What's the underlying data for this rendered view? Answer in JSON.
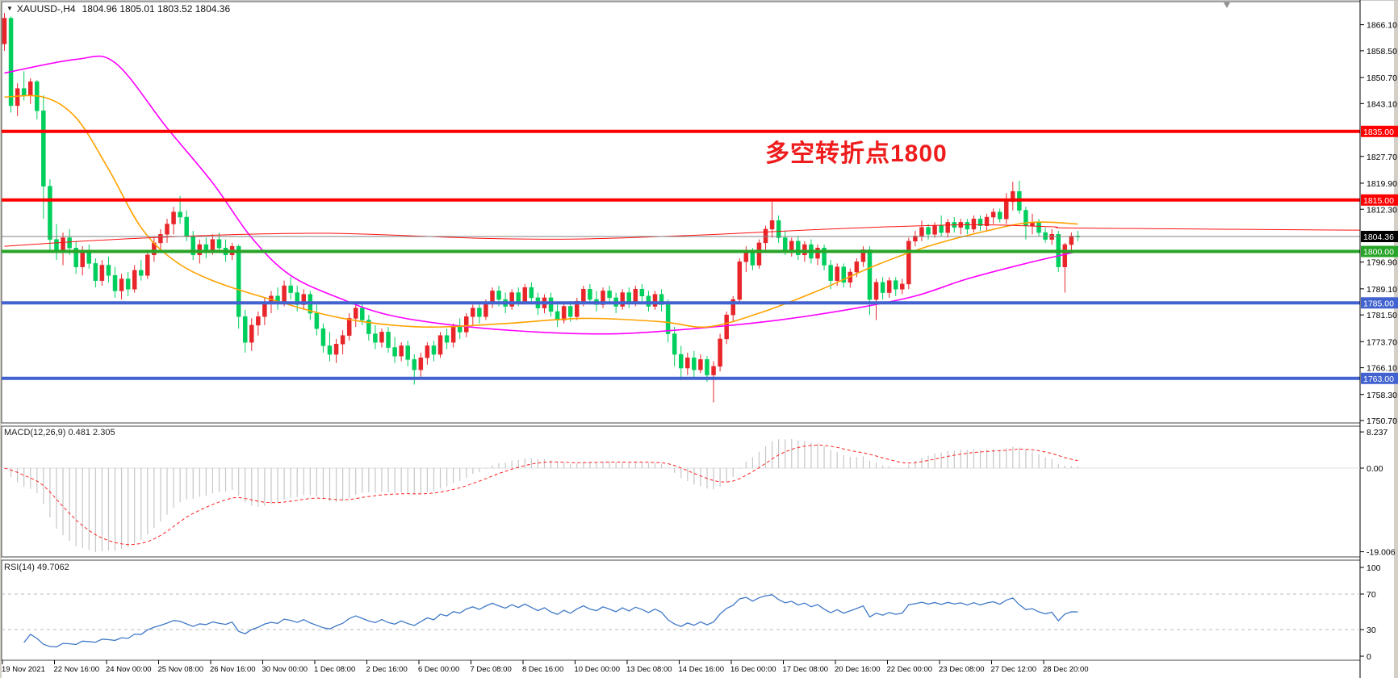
{
  "title": {
    "symbol": "XAUUSD-,H4",
    "ohlc": "1804.96 1805.01 1803.52 1804.36"
  },
  "annotation": {
    "text": "多空转折点1800",
    "color": "#ee1c1c"
  },
  "indicators": {
    "macd": {
      "label": "MACD(12,26,9) 0.481 2.305",
      "fast": 12,
      "slow": 26,
      "signal": 9,
      "histogram_color": "#c6c6c6",
      "signal_color": "#ff2222",
      "ticks": [
        {
          "label": "8.237",
          "value": 8.237
        },
        {
          "label": "0.00",
          "value": 0
        },
        {
          "label": "-19.006",
          "value": -19.006
        }
      ]
    },
    "rsi": {
      "label": "RSI(14) 49.7062",
      "period": 14,
      "line_color": "#4079c7",
      "dashed_levels": [
        70,
        30
      ],
      "ticks": [
        {
          "label": "100",
          "value": 100
        },
        {
          "label": "70",
          "value": 70
        },
        {
          "label": "30",
          "value": 30
        },
        {
          "label": "0",
          "value": 0
        }
      ]
    }
  },
  "price_axis": {
    "ticks": [
      {
        "label": "1866.10",
        "value": 1866.1
      },
      {
        "label": "1858.50",
        "value": 1858.5
      },
      {
        "label": "1850.70",
        "value": 1850.7
      },
      {
        "label": "1843.10",
        "value": 1843.1
      },
      {
        "label": "1827.70",
        "value": 1827.7
      },
      {
        "label": "1819.90",
        "value": 1819.9
      },
      {
        "label": "1812.30",
        "value": 1812.3
      },
      {
        "label": "1796.90",
        "value": 1796.9
      },
      {
        "label": "1789.10",
        "value": 1789.1
      },
      {
        "label": "1781.50",
        "value": 1781.5
      },
      {
        "label": "1773.70",
        "value": 1773.7
      },
      {
        "label": "1766.10",
        "value": 1766.1
      },
      {
        "label": "1758.30",
        "value": 1758.3
      },
      {
        "label": "1750.70",
        "value": 1750.7
      }
    ]
  },
  "time_axis": {
    "labels": [
      "19 Nov 2021",
      "22 Nov 16:00",
      "24 Nov 00:00",
      "25 Nov 08:00",
      "26 Nov 16:00",
      "30 Nov 00:00",
      "1 Dec 08:00",
      "2 Dec 16:00",
      "6 Dec 00:00",
      "7 Dec 08:00",
      "8 Dec 16:00",
      "10 Dec 00:00",
      "13 Dec 08:00",
      "14 Dec 16:00",
      "16 Dec 00:00",
      "17 Dec 08:00",
      "20 Dec 16:00",
      "22 Dec 00:00",
      "23 Dec 08:00",
      "27 Dec 12:00",
      "28 Dec 20:00"
    ]
  },
  "chart_data": {
    "type": "candlestick",
    "symbol": "XAUUSD-",
    "timeframe": "H4",
    "up_color": "#e8262a",
    "down_color": "#00cf5d",
    "last_bar": {
      "open": 1804.96,
      "high": 1805.01,
      "low": 1803.52,
      "close": 1804.36
    },
    "current_price": {
      "price": 1804.36,
      "label": "1804.36",
      "line_color": "#808080",
      "box_color": "#000000"
    },
    "horizontal_levels": [
      {
        "price": 1835,
        "label": "1835.00",
        "color": "#fe0000"
      },
      {
        "price": 1815,
        "label": "1815.00",
        "color": "#fe0000"
      },
      {
        "price": 1800,
        "label": "1800.00",
        "color": "#28a428"
      },
      {
        "price": 1785,
        "label": "1785.00",
        "color": "#4263cf"
      },
      {
        "price": 1763,
        "label": "1763.00",
        "color": "#4263cf"
      }
    ],
    "candles": [
      [
        1860.5,
        1869.5,
        1858.5,
        1868
      ],
      [
        1868,
        1868.5,
        1840.5,
        1842.5
      ],
      [
        1842.5,
        1849,
        1839.5,
        1847.5
      ],
      [
        1847.5,
        1852.5,
        1844,
        1845.5
      ],
      [
        1845.5,
        1850.5,
        1843,
        1849.5
      ],
      [
        1849.5,
        1850,
        1838.5,
        1841
      ],
      [
        1841,
        1845.5,
        1809.5,
        1819
      ],
      [
        1819,
        1821,
        1800,
        1803.5
      ],
      [
        1803.5,
        1808,
        1797.5,
        1800
      ],
      [
        1800,
        1805.5,
        1796,
        1804
      ],
      [
        1804,
        1806.5,
        1799,
        1801
      ],
      [
        1801,
        1803,
        1793.5,
        1795.5
      ],
      [
        1795.5,
        1801.5,
        1793,
        1800
      ],
      [
        1800,
        1802,
        1795,
        1796.5
      ],
      [
        1796.5,
        1798,
        1789.5,
        1791.5
      ],
      [
        1791.5,
        1797.5,
        1790,
        1796
      ],
      [
        1796,
        1798.5,
        1791,
        1793
      ],
      [
        1793,
        1795.5,
        1786.5,
        1788.5
      ],
      [
        1788.5,
        1793.5,
        1786,
        1792
      ],
      [
        1792,
        1794,
        1787,
        1789
      ],
      [
        1789,
        1796,
        1788,
        1794.5
      ],
      [
        1794.5,
        1797.5,
        1791.5,
        1793
      ],
      [
        1793,
        1800.5,
        1792,
        1799
      ],
      [
        1799,
        1804,
        1797,
        1802.5
      ],
      [
        1802.5,
        1806.5,
        1800,
        1805
      ],
      [
        1805,
        1809.5,
        1802.5,
        1808
      ],
      [
        1808,
        1813,
        1805,
        1811.5
      ],
      [
        1811.5,
        1816.2,
        1808,
        1810
      ],
      [
        1810,
        1812,
        1803,
        1804.5
      ],
      [
        1804.5,
        1806,
        1797.5,
        1799
      ],
      [
        1799,
        1803.5,
        1796.5,
        1802
      ],
      [
        1802,
        1804,
        1798,
        1800.5
      ],
      [
        1800.5,
        1805,
        1799,
        1803.5
      ],
      [
        1803.5,
        1805.5,
        1799.5,
        1801
      ],
      [
        1801,
        1803.5,
        1797,
        1799
      ],
      [
        1799,
        1802.5,
        1797.5,
        1801.5
      ],
      [
        1801.5,
        1802,
        1777.5,
        1781
      ],
      [
        1781,
        1783,
        1770.5,
        1773.5
      ],
      [
        1773.5,
        1780.5,
        1771,
        1778.5
      ],
      [
        1778.5,
        1782.5,
        1775.5,
        1781
      ],
      [
        1781,
        1786.5,
        1778.5,
        1785
      ],
      [
        1785,
        1788.5,
        1782,
        1787
      ],
      [
        1787,
        1789.5,
        1783,
        1785
      ],
      [
        1785,
        1791.5,
        1784,
        1790
      ],
      [
        1790,
        1792.5,
        1786,
        1788
      ],
      [
        1788,
        1790,
        1782.5,
        1784.5
      ],
      [
        1784.5,
        1789,
        1783,
        1787.5
      ],
      [
        1787.5,
        1788.5,
        1780,
        1782
      ],
      [
        1782,
        1784.5,
        1775.5,
        1777.5
      ],
      [
        1777.5,
        1779,
        1770.5,
        1772.5
      ],
      [
        1772.5,
        1776.5,
        1768,
        1770
      ],
      [
        1770,
        1774.5,
        1767.5,
        1773
      ],
      [
        1773,
        1777,
        1770,
        1775.5
      ],
      [
        1775.5,
        1782,
        1774,
        1780.5
      ],
      [
        1780.5,
        1784.5,
        1778,
        1783.5
      ],
      [
        1783.5,
        1785,
        1778.5,
        1780
      ],
      [
        1780,
        1781.5,
        1774,
        1776
      ],
      [
        1776,
        1778.5,
        1771.5,
        1773.5
      ],
      [
        1773.5,
        1777.5,
        1772,
        1776.5
      ],
      [
        1776.5,
        1778,
        1770.5,
        1772
      ],
      [
        1772,
        1775,
        1767.5,
        1769.5
      ],
      [
        1769.5,
        1773.5,
        1768,
        1772.5
      ],
      [
        1772.5,
        1774,
        1766.5,
        1768.5
      ],
      [
        1768.5,
        1770,
        1761.2,
        1765.5
      ],
      [
        1765.5,
        1770.5,
        1763.5,
        1769
      ],
      [
        1769,
        1773.5,
        1767,
        1772.5
      ],
      [
        1772.5,
        1774,
        1768,
        1770
      ],
      [
        1770,
        1776.5,
        1769,
        1775.5
      ],
      [
        1775.5,
        1777.5,
        1771.5,
        1773.5
      ],
      [
        1773.5,
        1779,
        1772,
        1778
      ],
      [
        1778,
        1780.5,
        1774.5,
        1776.5
      ],
      [
        1776.5,
        1782,
        1775,
        1781
      ],
      [
        1781,
        1784.5,
        1778.5,
        1783.5
      ],
      [
        1783.5,
        1785,
        1779,
        1781
      ],
      [
        1781,
        1786,
        1780,
        1785
      ],
      [
        1785,
        1789.5,
        1783.5,
        1788.5
      ],
      [
        1788.5,
        1790,
        1784,
        1786
      ],
      [
        1786,
        1788,
        1782,
        1784
      ],
      [
        1784,
        1789,
        1783,
        1788
      ],
      [
        1788,
        1789.5,
        1784,
        1785.5
      ],
      [
        1785.5,
        1790.5,
        1784.5,
        1789.5
      ],
      [
        1789.5,
        1791,
        1785,
        1786.5
      ],
      [
        1786.5,
        1788,
        1781.5,
        1783.5
      ],
      [
        1783.5,
        1787.5,
        1782,
        1786.5
      ],
      [
        1786.5,
        1788,
        1781,
        1782.5
      ],
      [
        1782.5,
        1784.5,
        1778,
        1780
      ],
      [
        1780,
        1785,
        1779,
        1784
      ],
      [
        1784,
        1785.5,
        1779.5,
        1781
      ],
      [
        1781,
        1786.5,
        1780,
        1785.5
      ],
      [
        1785.5,
        1790,
        1784,
        1789
      ],
      [
        1789,
        1790.5,
        1784.5,
        1786
      ],
      [
        1786,
        1788.5,
        1782.5,
        1784.5
      ],
      [
        1784.5,
        1789.5,
        1783.5,
        1788.5
      ],
      [
        1788.5,
        1790,
        1785,
        1786.5
      ],
      [
        1786.5,
        1788,
        1782,
        1784
      ],
      [
        1784,
        1789,
        1783,
        1788
      ],
      [
        1788,
        1789.5,
        1783.5,
        1785
      ],
      [
        1785,
        1790,
        1784,
        1789
      ],
      [
        1789,
        1790.5,
        1785.5,
        1787
      ],
      [
        1787,
        1788.5,
        1782.5,
        1784
      ],
      [
        1784,
        1788.5,
        1783,
        1787.5
      ],
      [
        1787.5,
        1789,
        1782.5,
        1784.5
      ],
      [
        1784.5,
        1786,
        1773.5,
        1776
      ],
      [
        1776,
        1778,
        1766.5,
        1770
      ],
      [
        1770,
        1772.5,
        1762.5,
        1766
      ],
      [
        1766,
        1770.5,
        1764,
        1769
      ],
      [
        1769,
        1771,
        1763.5,
        1765.5
      ],
      [
        1765.5,
        1770,
        1764.5,
        1768.5
      ],
      [
        1768.5,
        1769.5,
        1762,
        1764
      ],
      [
        1764,
        1768,
        1756,
        1766.5
      ],
      [
        1766.5,
        1776,
        1765,
        1774.5
      ],
      [
        1774.5,
        1782.5,
        1773,
        1781.5
      ],
      [
        1781.5,
        1787,
        1779.5,
        1786
      ],
      [
        1786,
        1798,
        1785,
        1797
      ],
      [
        1797,
        1801.5,
        1794,
        1800
      ],
      [
        1800,
        1801,
        1794.5,
        1796
      ],
      [
        1796,
        1803.5,
        1795,
        1802.5
      ],
      [
        1802.5,
        1807.5,
        1800.5,
        1806.5
      ],
      [
        1806.5,
        1814.5,
        1804,
        1809
      ],
      [
        1809,
        1810.5,
        1802.5,
        1804
      ],
      [
        1804,
        1806,
        1799,
        1800.5
      ],
      [
        1800.5,
        1804,
        1798.5,
        1803
      ],
      [
        1803,
        1804.5,
        1797.5,
        1799
      ],
      [
        1799,
        1803,
        1797,
        1802
      ],
      [
        1802,
        1803.5,
        1796.5,
        1798
      ],
      [
        1798,
        1802,
        1796,
        1801
      ],
      [
        1801,
        1802,
        1794.5,
        1796
      ],
      [
        1796,
        1797.5,
        1789,
        1791.5
      ],
      [
        1791.5,
        1796.5,
        1790,
        1795.5
      ],
      [
        1795.5,
        1796.5,
        1789.5,
        1791
      ],
      [
        1791,
        1795,
        1789.5,
        1794
      ],
      [
        1794,
        1798,
        1792.5,
        1797
      ],
      [
        1797,
        1801.5,
        1795.5,
        1800.5
      ],
      [
        1800.5,
        1801.5,
        1781.5,
        1786
      ],
      [
        1786,
        1792,
        1780,
        1791
      ],
      [
        1791,
        1792.5,
        1786,
        1788
      ],
      [
        1788,
        1792.5,
        1786.5,
        1791.5
      ],
      [
        1791.5,
        1792.5,
        1787,
        1789
      ],
      [
        1789,
        1792,
        1787.5,
        1790.5
      ],
      [
        1790.5,
        1804,
        1789,
        1803
      ],
      [
        1803,
        1806,
        1801.5,
        1804.5
      ],
      [
        1804.5,
        1809,
        1803,
        1807
      ],
      [
        1807,
        1808,
        1803.5,
        1805
      ],
      [
        1805,
        1808.5,
        1804,
        1807.5
      ],
      [
        1807.5,
        1810.5,
        1804.5,
        1805.5
      ],
      [
        1805.5,
        1809.5,
        1804,
        1808.5
      ],
      [
        1808.5,
        1810,
        1805.5,
        1807
      ],
      [
        1807,
        1809.5,
        1805,
        1808.5
      ],
      [
        1808.5,
        1809.5,
        1805,
        1806.5
      ],
      [
        1806.5,
        1810.5,
        1805.5,
        1809.5
      ],
      [
        1809.5,
        1810.5,
        1806,
        1807.5
      ],
      [
        1807.5,
        1811,
        1806,
        1810
      ],
      [
        1810,
        1812.5,
        1808,
        1811.5
      ],
      [
        1811.5,
        1812.5,
        1808.5,
        1809.5
      ],
      [
        1809.5,
        1817,
        1808,
        1814.5
      ],
      [
        1814.5,
        1820.3,
        1812,
        1817.5
      ],
      [
        1817.5,
        1820.6,
        1811,
        1812
      ],
      [
        1812,
        1813,
        1803.5,
        1807.5
      ],
      [
        1807.5,
        1811,
        1805,
        1808.5
      ],
      [
        1808.5,
        1809.5,
        1804.5,
        1805.5
      ],
      [
        1805.5,
        1807,
        1802.5,
        1803.5
      ],
      [
        1803.5,
        1806.5,
        1802,
        1805
      ],
      [
        1805,
        1806,
        1794,
        1795.5
      ],
      [
        1795.5,
        1802.5,
        1788,
        1802
      ],
      [
        1802,
        1805.5,
        1799.5,
        1804.5
      ],
      [
        1804.5,
        1806,
        1803,
        1804.36
      ]
    ],
    "moving_averages": [
      {
        "name": "ma-magenta",
        "color": "#ff00ff",
        "width": 1.6,
        "points": [
          [
            0,
            1852
          ],
          [
            11,
            1856
          ],
          [
            17,
            1855
          ],
          [
            25,
            1836
          ],
          [
            32,
            1820
          ],
          [
            38,
            1804
          ],
          [
            44,
            1793
          ],
          [
            52,
            1786
          ],
          [
            59,
            1781.5
          ],
          [
            69,
            1778.5
          ],
          [
            82,
            1776.5
          ],
          [
            94,
            1776
          ],
          [
            106,
            1777.5
          ],
          [
            119,
            1780
          ],
          [
            131,
            1783.5
          ],
          [
            140,
            1787
          ],
          [
            148,
            1792
          ],
          [
            157,
            1796.5
          ],
          [
            165,
            1800
          ]
        ]
      },
      {
        "name": "ma-orange",
        "color": "#ffa200",
        "width": 1.6,
        "points": [
          [
            0,
            1845
          ],
          [
            6,
            1845
          ],
          [
            11,
            1839
          ],
          [
            16,
            1824
          ],
          [
            21,
            1807
          ],
          [
            26,
            1797.5
          ],
          [
            32,
            1791.5
          ],
          [
            41,
            1786
          ],
          [
            52,
            1780.5
          ],
          [
            64,
            1778
          ],
          [
            77,
            1779
          ],
          [
            89,
            1780.5
          ],
          [
            101,
            1779.5
          ],
          [
            108,
            1778
          ],
          [
            116,
            1782
          ],
          [
            125,
            1788.5
          ],
          [
            134,
            1796
          ],
          [
            142,
            1801.5
          ],
          [
            151,
            1806
          ],
          [
            158,
            1808.5
          ],
          [
            165,
            1808
          ]
        ]
      },
      {
        "name": "ma-red",
        "color": "#ff1111",
        "width": 1,
        "extend_to_axis": true,
        "points": [
          [
            0,
            1801.5
          ],
          [
            12,
            1803
          ],
          [
            25,
            1804.2
          ],
          [
            37,
            1805
          ],
          [
            50,
            1805.3
          ],
          [
            62,
            1804.6
          ],
          [
            74,
            1803.8
          ],
          [
            87,
            1803.6
          ],
          [
            99,
            1804.2
          ],
          [
            112,
            1805.2
          ],
          [
            124,
            1806.3
          ],
          [
            136,
            1807.2
          ],
          [
            149,
            1807.8
          ],
          [
            161,
            1807.2
          ],
          [
            166,
            1806.8
          ],
          [
            209,
            1806.2
          ]
        ]
      }
    ]
  }
}
